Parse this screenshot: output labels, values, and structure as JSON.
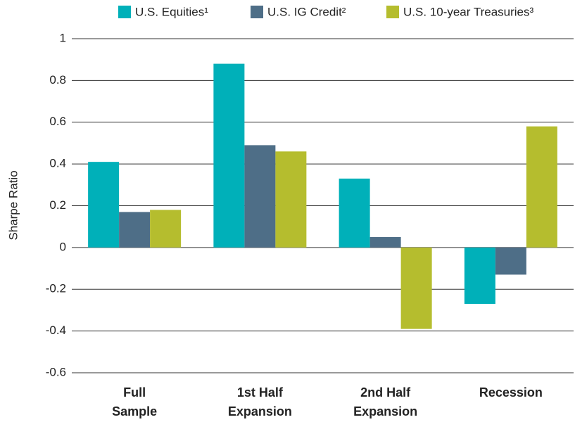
{
  "chart_data": {
    "type": "bar",
    "y_label": "Sharpe Ratio",
    "categories": [
      "Full Sample",
      "1st Half Expansion",
      "2nd Half Expansion",
      "Recession"
    ],
    "series": [
      {
        "name": "U.S. Equities¹",
        "color": "#00b0b9",
        "values": [
          0.41,
          0.88,
          0.33,
          -0.27
        ]
      },
      {
        "name": "U.S. IG Credit²",
        "color": "#4e6e87",
        "values": [
          0.17,
          0.49,
          0.05,
          -0.13
        ]
      },
      {
        "name": "U.S. 10-year Treasuries³",
        "color": "#b5bd2e",
        "values": [
          0.18,
          0.46,
          -0.39,
          0.58
        ]
      }
    ],
    "ylim": [
      -0.6,
      1
    ],
    "yticks": [
      -0.6,
      -0.4,
      -0.2,
      0,
      0.2,
      0.4,
      0.6,
      0.8,
      1
    ],
    "grid": true,
    "legend": "top"
  }
}
